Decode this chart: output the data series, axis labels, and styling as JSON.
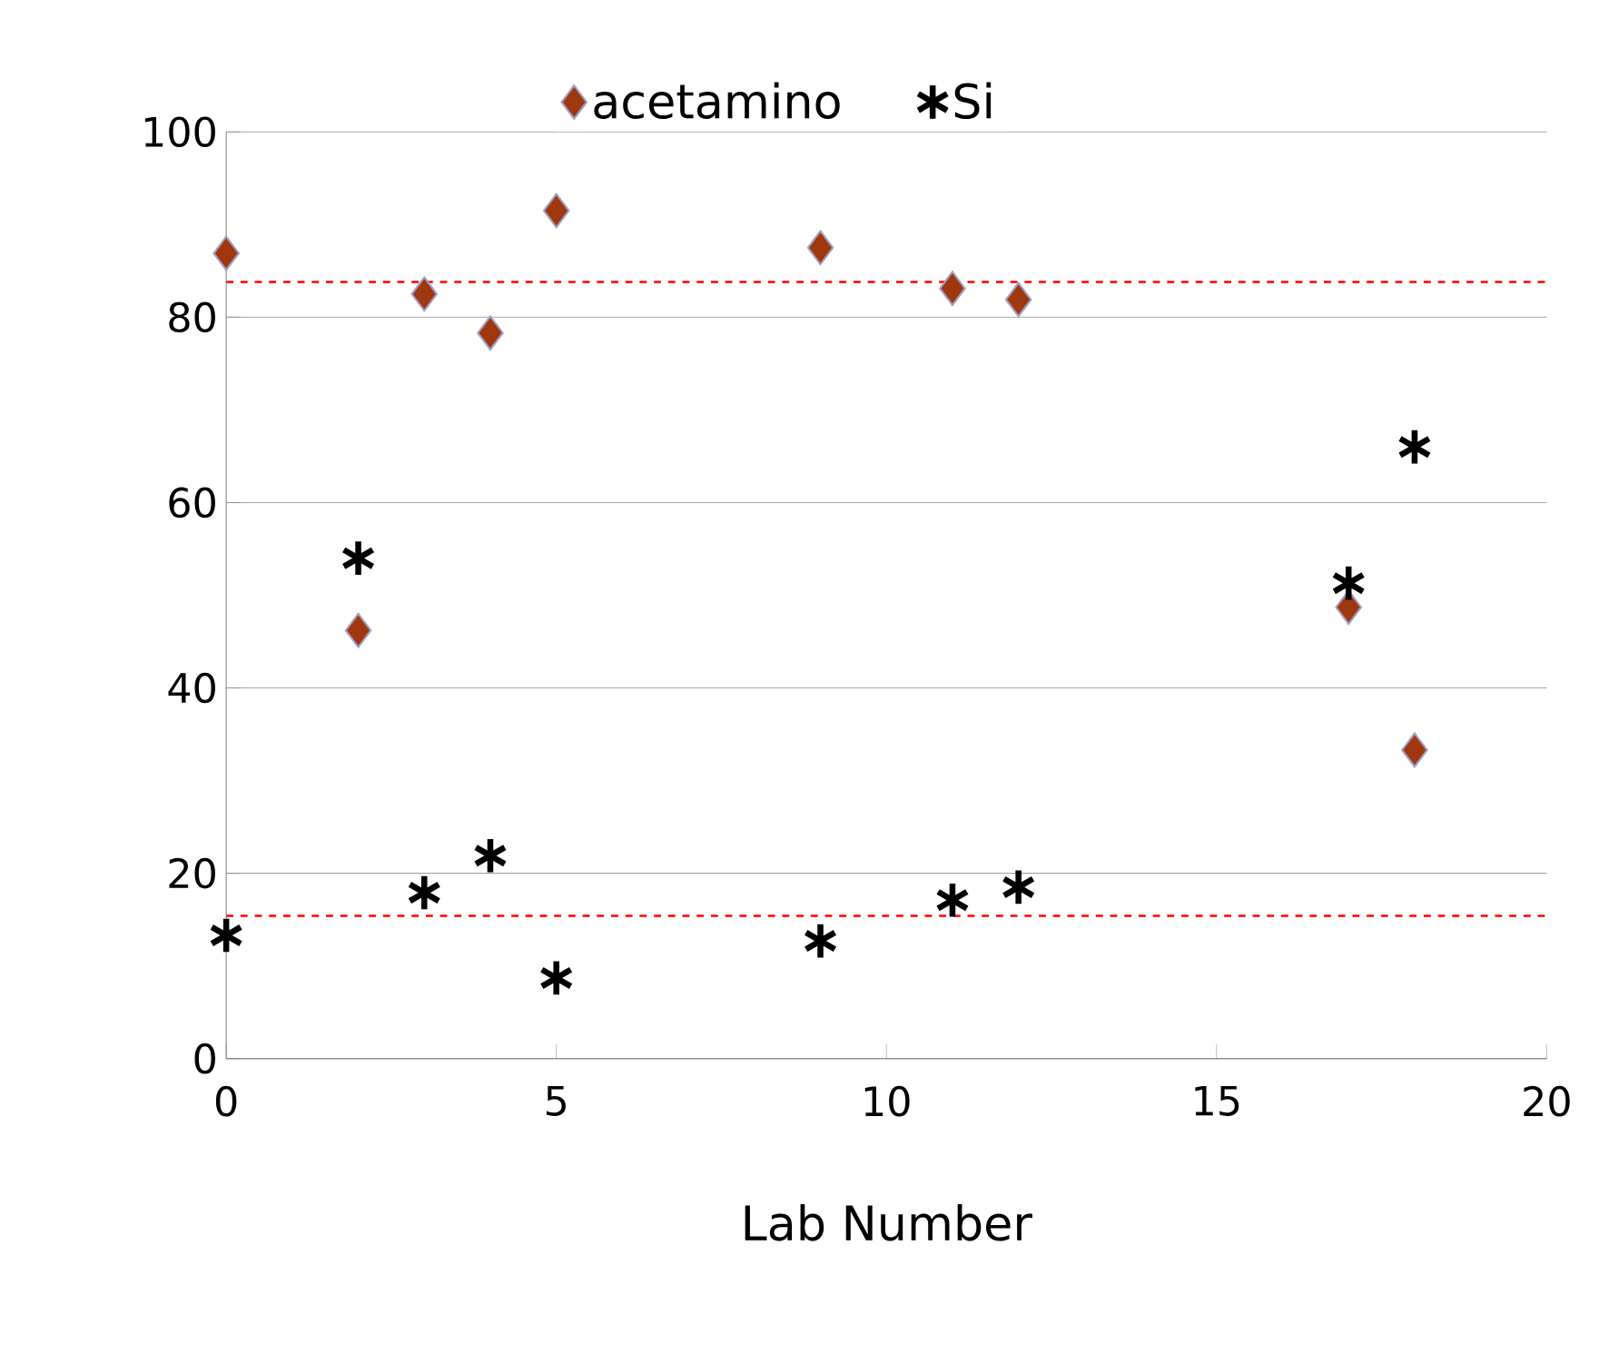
{
  "chart_data": {
    "type": "scatter",
    "xlabel": "Lab Number",
    "xlim": [
      0,
      20
    ],
    "xticks": [
      0,
      5,
      10,
      15,
      20
    ],
    "ylim": [
      0,
      100
    ],
    "yticks": [
      0,
      20,
      40,
      60,
      80,
      100
    ],
    "grid": "y",
    "legend": "top",
    "x": [
      0,
      2,
      3,
      4,
      5,
      9,
      11,
      12,
      17,
      18
    ],
    "series": [
      {
        "name": "acetamino",
        "color": "#a0380f",
        "marker": "diamond",
        "values": [
          86.9,
          46.2,
          82.5,
          78.3,
          91.5,
          87.5,
          83.1,
          81.9,
          48.7,
          33.3
        ]
      },
      {
        "name": "Si",
        "color": "#000000",
        "marker": "cross",
        "values": [
          13.3,
          54,
          17.9,
          21.9,
          8.7,
          12.7,
          17.1,
          18.5,
          51.3,
          66
        ]
      }
    ],
    "ref_lines": [
      {
        "axis": "y",
        "value": 83.8,
        "color": "#ff0000",
        "line_style": "dashed"
      },
      {
        "axis": "y",
        "value": 15.4,
        "color": "#ff0000",
        "line_style": "dashed"
      }
    ]
  }
}
